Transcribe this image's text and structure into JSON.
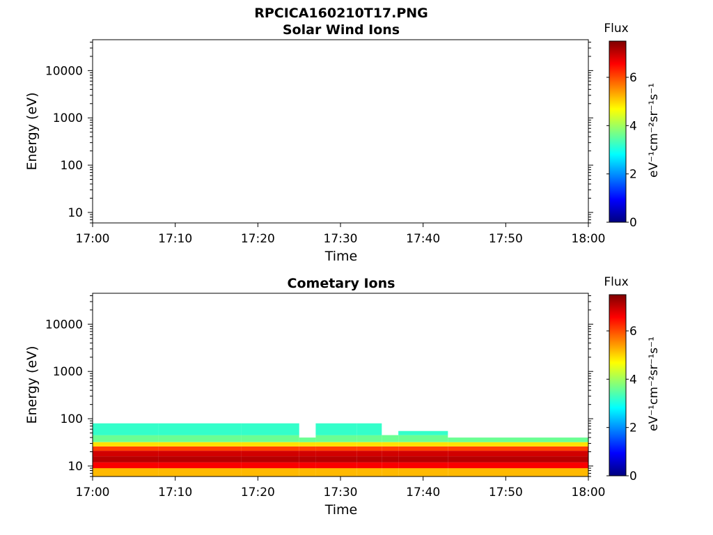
{
  "figure_title": "RPCICA160210T17.PNG",
  "chart_data": [
    {
      "type": "heatmap",
      "title": "Solar Wind Ions",
      "xlabel": "Time",
      "ylabel": "Energy (eV)",
      "y_scale": "log",
      "ylim": [
        6,
        45000
      ],
      "xlim": [
        "17:00",
        "18:00"
      ],
      "x_ticks": [
        "17:00",
        "17:10",
        "17:20",
        "17:30",
        "17:40",
        "17:50",
        "18:00"
      ],
      "y_ticks": [
        "10",
        "100",
        "1000",
        "10000"
      ],
      "y_tick_values": [
        10,
        100,
        1000,
        10000
      ],
      "colorbar": {
        "title": "Flux",
        "label": "eV⁻¹cm⁻²sr⁻¹s⁻¹",
        "range": [
          0,
          7.5
        ],
        "ticks": [
          "0",
          "2",
          "4",
          "6"
        ],
        "tick_values": [
          0,
          2,
          4,
          6
        ],
        "colormap": [
          "#00007f",
          "#0000ff",
          "#007fff",
          "#00ffff",
          "#7fff7f",
          "#ffff00",
          "#ff7f00",
          "#ff0000",
          "#7f0000"
        ]
      },
      "grid": false,
      "data": []
    },
    {
      "type": "heatmap",
      "title": "Cometary Ions",
      "xlabel": "Time",
      "ylabel": "Energy (eV)",
      "y_scale": "log",
      "ylim": [
        6,
        45000
      ],
      "xlim": [
        "17:00",
        "18:00"
      ],
      "x_ticks": [
        "17:00",
        "17:10",
        "17:20",
        "17:30",
        "17:40",
        "17:50",
        "18:00"
      ],
      "y_ticks": [
        "10",
        "100",
        "1000",
        "10000"
      ],
      "y_tick_values": [
        10,
        100,
        1000,
        10000
      ],
      "colorbar": {
        "title": "Flux",
        "label": "eV⁻¹cm⁻²sr⁻¹s⁻¹",
        "range": [
          0,
          7.5
        ],
        "ticks": [
          "0",
          "2",
          "4",
          "6"
        ],
        "tick_values": [
          0,
          2,
          4,
          6
        ],
        "colormap": [
          "#00007f",
          "#0000ff",
          "#007fff",
          "#00ffff",
          "#7fff7f",
          "#ffff00",
          "#ff7f00",
          "#ff0000",
          "#7f0000"
        ]
      },
      "grid": false,
      "energy_bands": [
        {
          "from": 6,
          "to": 9,
          "flux": 5.2
        },
        {
          "from": 9,
          "to": 12,
          "flux": 6.6
        },
        {
          "from": 12,
          "to": 16,
          "flux": 7.1
        },
        {
          "from": 16,
          "to": 21,
          "flux": 6.9
        },
        {
          "from": 21,
          "to": 26,
          "flux": 6.1
        },
        {
          "from": 26,
          "to": 32,
          "flux": 4.9
        },
        {
          "from": 32,
          "to": 45,
          "flux": 3.6
        },
        {
          "from": 45,
          "to": 80,
          "flux": 3.2
        }
      ],
      "intervals": [
        {
          "start": "17:00",
          "end": "17:08",
          "upper_energy": 80
        },
        {
          "start": "17:08",
          "end": "17:18",
          "upper_energy": 80
        },
        {
          "start": "17:18",
          "end": "17:25",
          "upper_energy": 80
        },
        {
          "start": "17:25",
          "end": "17:27",
          "upper_energy": 40
        },
        {
          "start": "17:27",
          "end": "17:32",
          "upper_energy": 80
        },
        {
          "start": "17:32",
          "end": "17:35",
          "upper_energy": 80
        },
        {
          "start": "17:35",
          "end": "17:37",
          "upper_energy": 45
        },
        {
          "start": "17:37",
          "end": "17:43",
          "upper_energy": 55
        },
        {
          "start": "17:43",
          "end": "18:00",
          "upper_energy": 40
        }
      ]
    }
  ]
}
